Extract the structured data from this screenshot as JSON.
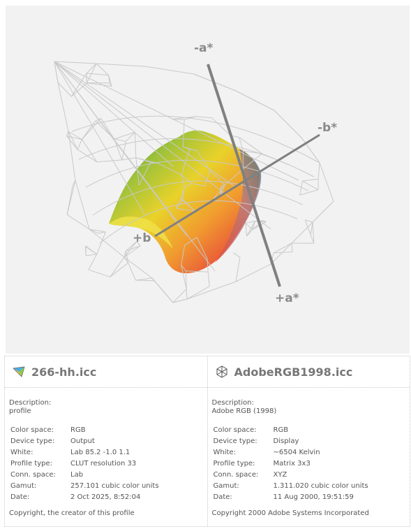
{
  "viewer": {
    "axes": {
      "minus_a": "-a*",
      "plus_a": "+a*",
      "minus_b": "-b*",
      "plus_b": "+b"
    }
  },
  "profiles": [
    {
      "icon": "color-wheel-icon",
      "name": "266-hh.icc",
      "description_label": "Description:",
      "description": "profile",
      "properties": [
        {
          "key": "Color space:",
          "value": "RGB"
        },
        {
          "key": "Device type:",
          "value": "Output"
        },
        {
          "key": "White:",
          "value": "Lab 85.2 -1.0 1.1"
        },
        {
          "key": "Profile type:",
          "value": "CLUT resolution 33"
        },
        {
          "key": "Conn. space:",
          "value": "Lab"
        },
        {
          "key": "Gamut:",
          "value": "257.101 cubic color units"
        },
        {
          "key": "Date:",
          "value": "2 Oct 2025, 8:52:04"
        }
      ],
      "copyright": "Copyright, the creator of this profile"
    },
    {
      "icon": "wireframe-cube-icon",
      "name": "AdobeRGB1998.icc",
      "description_label": "Description:",
      "description": "Adobe RGB (1998)",
      "properties": [
        {
          "key": "Color space:",
          "value": "RGB"
        },
        {
          "key": "Device type:",
          "value": "Display"
        },
        {
          "key": "White:",
          "value": "~6504 Kelvin"
        },
        {
          "key": "Profile type:",
          "value": "Matrix 3x3"
        },
        {
          "key": "Conn. space:",
          "value": "XYZ"
        },
        {
          "key": "Gamut:",
          "value": "1.311.020 cubic color units"
        },
        {
          "key": "Date:",
          "value": "11 Aug 2000, 19:51:59"
        }
      ],
      "copyright": "Copyright 2000 Adobe Systems Incorporated"
    }
  ]
}
